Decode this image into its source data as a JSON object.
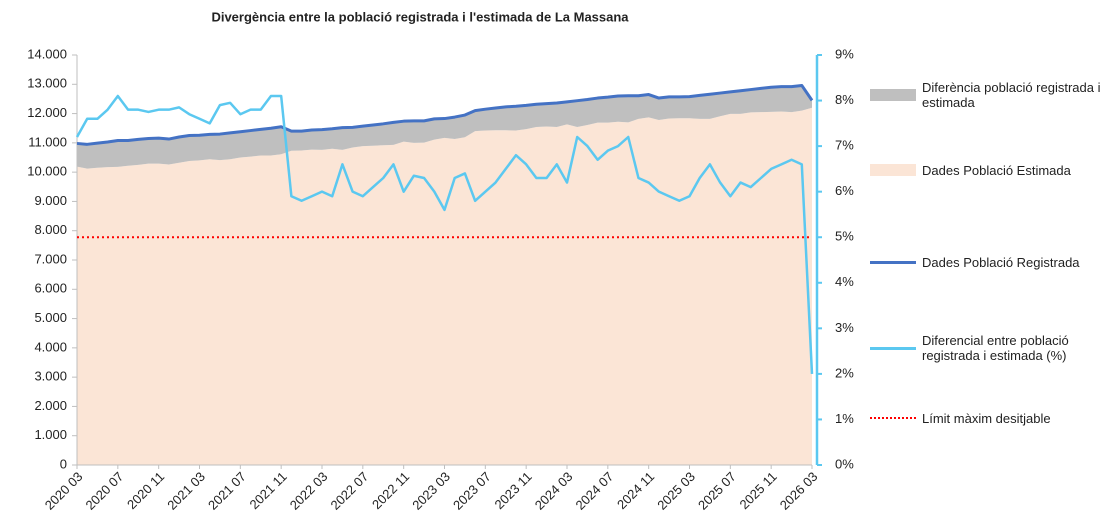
{
  "chart_data": {
    "type": "combo",
    "title": "Divergència entre la població registrada i l'estimada de La Massana",
    "categories": [
      "2020 03",
      null,
      null,
      null,
      "2020 07",
      null,
      null,
      null,
      "2020 11",
      null,
      null,
      null,
      "2021 03",
      null,
      null,
      null,
      "2021 07",
      null,
      null,
      null,
      "2021 11",
      null,
      null,
      null,
      "2022 03",
      null,
      null,
      null,
      "2022 07",
      null,
      null,
      null,
      "2022 11",
      null,
      null,
      null,
      "2023 03",
      null,
      null,
      null,
      "2023 07",
      null,
      null,
      null,
      "2023 11",
      null,
      null,
      null,
      "2024 03",
      null,
      null,
      null,
      "2024 07",
      null,
      null,
      null,
      "2024 11",
      null,
      null,
      null,
      "2025 03",
      null,
      null,
      null,
      "2025 07",
      null,
      null,
      null,
      "2025 11",
      null,
      null,
      null,
      "2026 03"
    ],
    "series": [
      {
        "name": "Diferència població registrada i estimada",
        "kind": "area",
        "stack": true,
        "color": "#bfbfbf",
        "values": [
          790,
          830,
          840,
          860,
          900,
          860,
          870,
          860,
          870,
          870,
          880,
          870,
          860,
          850,
          890,
          900,
          880,
          890,
          890,
          930,
          940,
          670,
          660,
          670,
          690,
          680,
          760,
          690,
          680,
          710,
          730,
          770,
          700,
          750,
          740,
          710,
          660,
          750,
          760,
          700,
          730,
          760,
          800,
          830,
          810,
          780,
          780,
          820,
          770,
          900,
          870,
          840,
          870,
          880,
          910,
          790,
          780,
          750,
          740,
          730,
          740,
          800,
          840,
          790,
          750,
          790,
          780,
          810,
          840,
          850,
          870,
          860,
          250
        ]
      },
      {
        "name": "Dades Població Estimada",
        "kind": "area",
        "color": "#fbe5d6",
        "values": [
          10190,
          10120,
          10150,
          10170,
          10180,
          10220,
          10250,
          10290,
          10290,
          10260,
          10320,
          10380,
          10400,
          10440,
          10410,
          10440,
          10500,
          10530,
          10570,
          10570,
          10610,
          10730,
          10740,
          10770,
          10760,
          10800,
          10760,
          10840,
          10890,
          10900,
          10920,
          10930,
          11040,
          11000,
          11010,
          11110,
          11170,
          11130,
          11190,
          11400,
          11420,
          11430,
          11430,
          11420,
          11470,
          11540,
          11560,
          11540,
          11630,
          11540,
          11610,
          11690,
          11690,
          11720,
          11700,
          11820,
          11870,
          11780,
          11830,
          11840,
          11840,
          11820,
          11820,
          11910,
          11990,
          11990,
          12040,
          12050,
          12060,
          12070,
          12050,
          12100,
          12200
        ]
      },
      {
        "name": "Dades Població Registrada",
        "kind": "line",
        "color": "#4472c4",
        "values": [
          10980,
          10950,
          10990,
          11030,
          11080,
          11080,
          11120,
          11150,
          11160,
          11130,
          11200,
          11250,
          11260,
          11290,
          11300,
          11340,
          11380,
          11420,
          11460,
          11500,
          11550,
          11400,
          11400,
          11440,
          11450,
          11480,
          11520,
          11530,
          11570,
          11610,
          11650,
          11700,
          11740,
          11750,
          11750,
          11820,
          11830,
          11880,
          11950,
          12100,
          12150,
          12190,
          12230,
          12250,
          12280,
          12320,
          12340,
          12360,
          12400,
          12440,
          12480,
          12530,
          12560,
          12600,
          12610,
          12610,
          12650,
          12530,
          12570,
          12570,
          12580,
          12620,
          12660,
          12700,
          12740,
          12780,
          12820,
          12860,
          12900,
          12920,
          12920,
          12960,
          12450
        ]
      },
      {
        "name": "Diferencial entre població registrada i estimada (%)",
        "kind": "line",
        "axis": "y2",
        "color": "#5bc8f0",
        "values": [
          7.2,
          7.6,
          7.6,
          7.8,
          8.1,
          7.8,
          7.8,
          7.75,
          7.8,
          7.8,
          7.85,
          7.7,
          7.6,
          7.5,
          7.9,
          7.95,
          7.7,
          7.8,
          7.8,
          8.1,
          8.1,
          5.9,
          5.8,
          5.9,
          6.0,
          5.9,
          6.6,
          6.0,
          5.9,
          6.1,
          6.3,
          6.6,
          6.0,
          6.35,
          6.3,
          6.0,
          5.6,
          6.3,
          6.4,
          5.8,
          6.0,
          6.2,
          6.5,
          6.8,
          6.6,
          6.3,
          6.3,
          6.6,
          6.2,
          7.2,
          7.0,
          6.7,
          6.9,
          7.0,
          7.2,
          6.3,
          6.2,
          6.0,
          5.9,
          5.8,
          5.9,
          6.3,
          6.6,
          6.2,
          5.9,
          6.2,
          6.1,
          6.3,
          6.5,
          6.6,
          6.7,
          6.6,
          2.0
        ]
      }
    ],
    "reference_line": {
      "name": "Límit màxim desitjable",
      "value": 5,
      "axis": "y2",
      "color": "#ff0000"
    },
    "ylim": [
      0,
      14000
    ],
    "yticks": [
      0,
      {
        "value": 1000,
        "label": "1.000"
      },
      {
        "value": 2000,
        "label": "2.000"
      },
      {
        "value": 3000,
        "label": "3.000"
      },
      {
        "value": 4000,
        "label": "4.000"
      },
      {
        "value": 5000,
        "label": "5.000"
      },
      {
        "value": 6000,
        "label": "6.000"
      },
      {
        "value": 7000,
        "label": "7.000"
      },
      {
        "value": 8000,
        "label": "8.000"
      },
      {
        "value": 9000,
        "label": "9.000"
      },
      {
        "value": 10000,
        "label": "10.000"
      },
      {
        "value": 11000,
        "label": "11.000"
      },
      {
        "value": 12000,
        "label": "12.000"
      },
      {
        "value": 13000,
        "label": "13.000"
      },
      {
        "value": 14000,
        "label": "14.000"
      }
    ],
    "y2lim": [
      0,
      9
    ],
    "y2ticks": [
      {
        "value": 0,
        "label": "0%"
      },
      {
        "value": 1,
        "label": "1%"
      },
      {
        "value": 2,
        "label": "2%"
      },
      {
        "value": 3,
        "label": "3%"
      },
      {
        "value": 4,
        "label": "4%"
      },
      {
        "value": 5,
        "label": "5%"
      },
      {
        "value": 6,
        "label": "6%"
      },
      {
        "value": 7,
        "label": "7%"
      },
      {
        "value": 8,
        "label": "8%"
      },
      {
        "value": 9,
        "label": "9%"
      }
    ],
    "legend": "right"
  }
}
